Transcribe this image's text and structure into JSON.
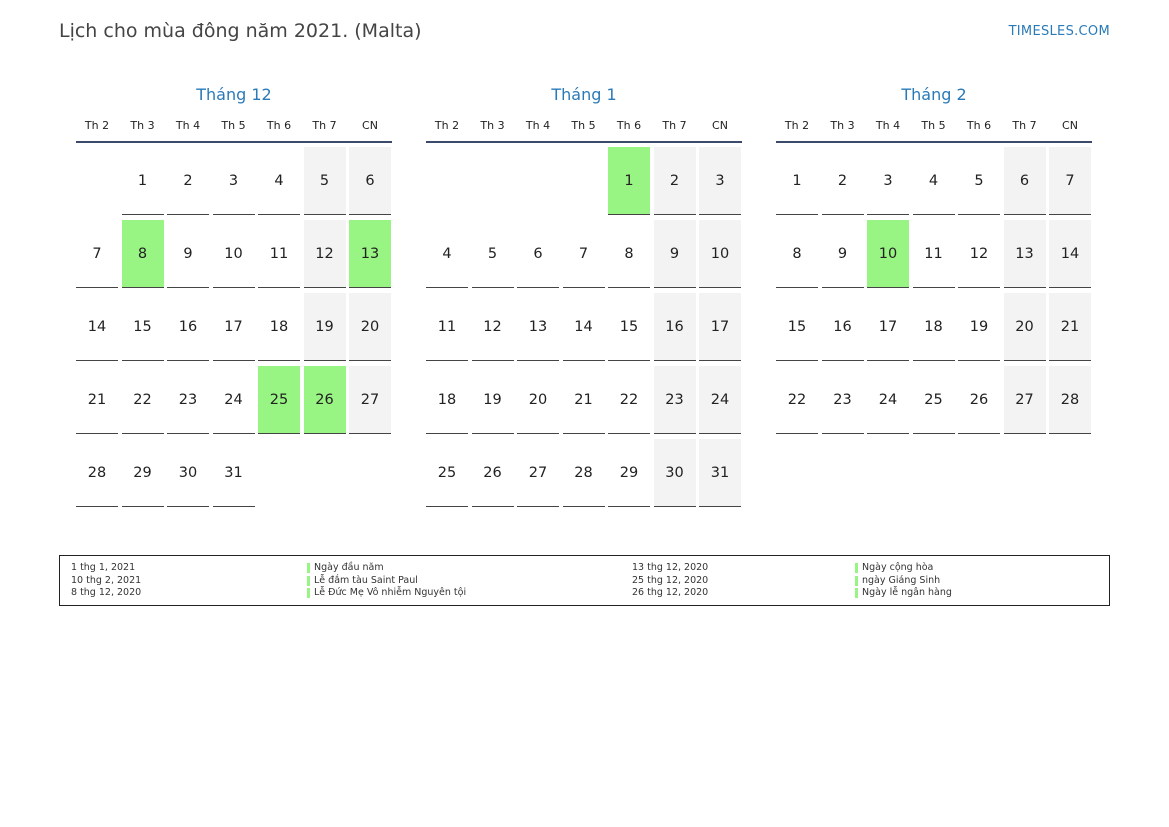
{
  "title": "Lịch cho mùa đông năm 2021. (Malta)",
  "brand": "TIMESLES.COM",
  "weekdays": [
    "Th 2",
    "Th 3",
    "Th 4",
    "Th 5",
    "Th 6",
    "Th 7",
    "CN"
  ],
  "colors": {
    "holiday": "#99f583",
    "weekend": "#f3f3f3",
    "accent": "#2a7ab8"
  },
  "months": [
    {
      "name": "Tháng 12",
      "start_offset": 1,
      "days": 31,
      "holidays": [
        8,
        13,
        25,
        26
      ]
    },
    {
      "name": "Tháng 1",
      "start_offset": 4,
      "days": 31,
      "holidays": [
        1
      ]
    },
    {
      "name": "Tháng 2",
      "start_offset": 0,
      "days": 28,
      "holidays": [
        10
      ]
    }
  ],
  "legend": [
    {
      "date": "1 thg 1, 2021",
      "name": "Ngày đầu năm"
    },
    {
      "date": "10 thg 2, 2021",
      "name": "Lễ đắm tàu Saint Paul"
    },
    {
      "date": "8 thg 12, 2020",
      "name": "Lễ Đức Mẹ Vô nhiễm Nguyên tội"
    },
    {
      "date": "13 thg 12, 2020",
      "name": "Ngày cộng hòa"
    },
    {
      "date": "25 thg 12, 2020",
      "name": "ngày Giáng Sinh"
    },
    {
      "date": "26 thg 12, 2020",
      "name": "Ngày lễ ngân hàng"
    }
  ]
}
